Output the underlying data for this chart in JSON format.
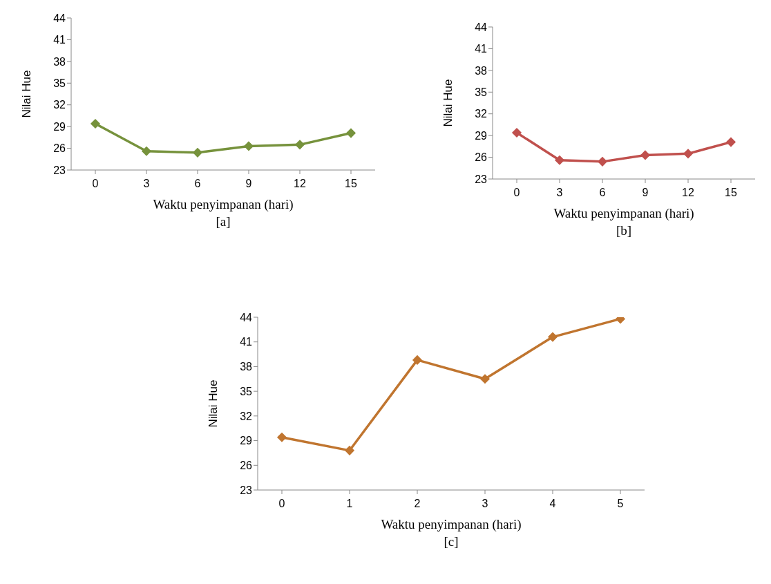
{
  "chart_data": [
    {
      "type": "line",
      "xlabel": "Waktu penyimpanan (hari)",
      "ylabel": "Nilai Hue",
      "categories": [
        "0",
        "3",
        "6",
        "9",
        "12",
        "15"
      ],
      "series": [
        {
          "color": "#76923c",
          "values": [
            29.4,
            25.6,
            25.4,
            26.3,
            26.5,
            28.1
          ]
        }
      ],
      "ylim": [
        23,
        44
      ],
      "yticks": [
        23,
        26,
        29,
        32,
        35,
        38,
        41,
        44
      ],
      "grid": false,
      "legend": false,
      "marker": "diamond",
      "line_style": "solid",
      "annotations": [
        "[a]"
      ]
    },
    {
      "type": "line",
      "xlabel": "Waktu penyimpanan (hari)",
      "ylabel": "Nilai Hue",
      "categories": [
        "0",
        "3",
        "6",
        "9",
        "12",
        "15"
      ],
      "series": [
        {
          "color": "#c0504d",
          "values": [
            29.4,
            25.6,
            25.4,
            26.3,
            26.5,
            28.1
          ]
        }
      ],
      "ylim": [
        23,
        44
      ],
      "yticks": [
        23,
        26,
        29,
        32,
        35,
        38,
        41,
        44
      ],
      "grid": false,
      "legend": false,
      "marker": "diamond",
      "line_style": "solid",
      "annotations": [
        "[b]"
      ]
    },
    {
      "type": "line",
      "xlabel": "Waktu penyimpanan (hari)",
      "ylabel": "Nilai Hue",
      "categories": [
        "0",
        "1",
        "2",
        "3",
        "4",
        "5"
      ],
      "series": [
        {
          "color": "#c0752f",
          "values": [
            29.4,
            27.8,
            38.8,
            36.5,
            41.6,
            43.8
          ]
        }
      ],
      "ylim": [
        23,
        44
      ],
      "yticks": [
        23,
        26,
        29,
        32,
        35,
        38,
        41,
        44
      ],
      "grid": false,
      "legend": false,
      "marker": "diamond",
      "line_style": "solid",
      "annotations": [
        "[c]"
      ]
    }
  ]
}
